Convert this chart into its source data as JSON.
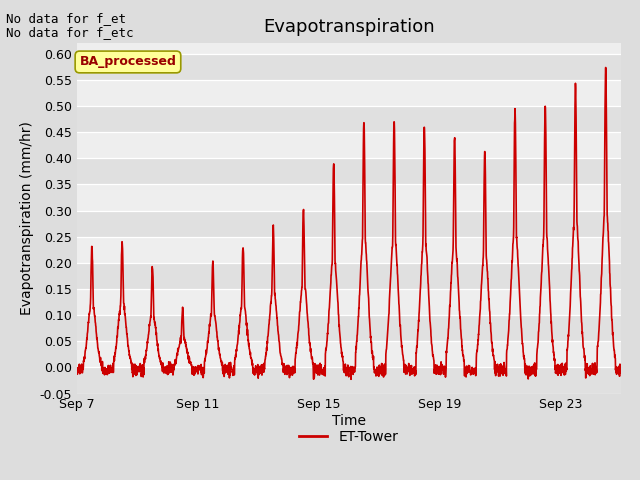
{
  "title": "Evapotranspiration",
  "xlabel": "Time",
  "ylabel": "Evapotranspiration (mm/hr)",
  "ylim": [
    -0.05,
    0.62
  ],
  "yticks": [
    -0.05,
    0.0,
    0.05,
    0.1,
    0.15,
    0.2,
    0.25,
    0.3,
    0.35,
    0.4,
    0.45,
    0.5,
    0.55,
    0.6
  ],
  "xtick_labels": [
    "Sep 7",
    "Sep 11",
    "Sep 15",
    "Sep 19",
    "Sep 23"
  ],
  "xtick_positions": [
    0,
    4,
    8,
    12,
    16
  ],
  "xlim": [
    0,
    18
  ],
  "line_color": "#cc0000",
  "line_width": 1.2,
  "bg_color": "#dddddd",
  "plot_bg_color_light": "#eeeeee",
  "plot_bg_color_dark": "#e0e0e0",
  "title_fontsize": 13,
  "ylabel_fontsize": 10,
  "xlabel_fontsize": 10,
  "tick_fontsize": 9,
  "annotation_top": "No data for f_et",
  "annotation_bottom": "No data for f_etc",
  "annotation_fontsize": 9,
  "legend_label": "ET-Tower",
  "legend_box_label": "BA_processed",
  "legend_box_color": "#ffff99",
  "legend_box_border": "#999900",
  "legend_box_text_color": "#990000",
  "daily_peaks": [
    0.23,
    0.24,
    0.19,
    0.11,
    0.2,
    0.23,
    0.27,
    0.3,
    0.39,
    0.47,
    0.47,
    0.46,
    0.44,
    0.41,
    0.49,
    0.5,
    0.54,
    0.57
  ],
  "n_days": 18,
  "n_per_day": 144,
  "seed": 42
}
